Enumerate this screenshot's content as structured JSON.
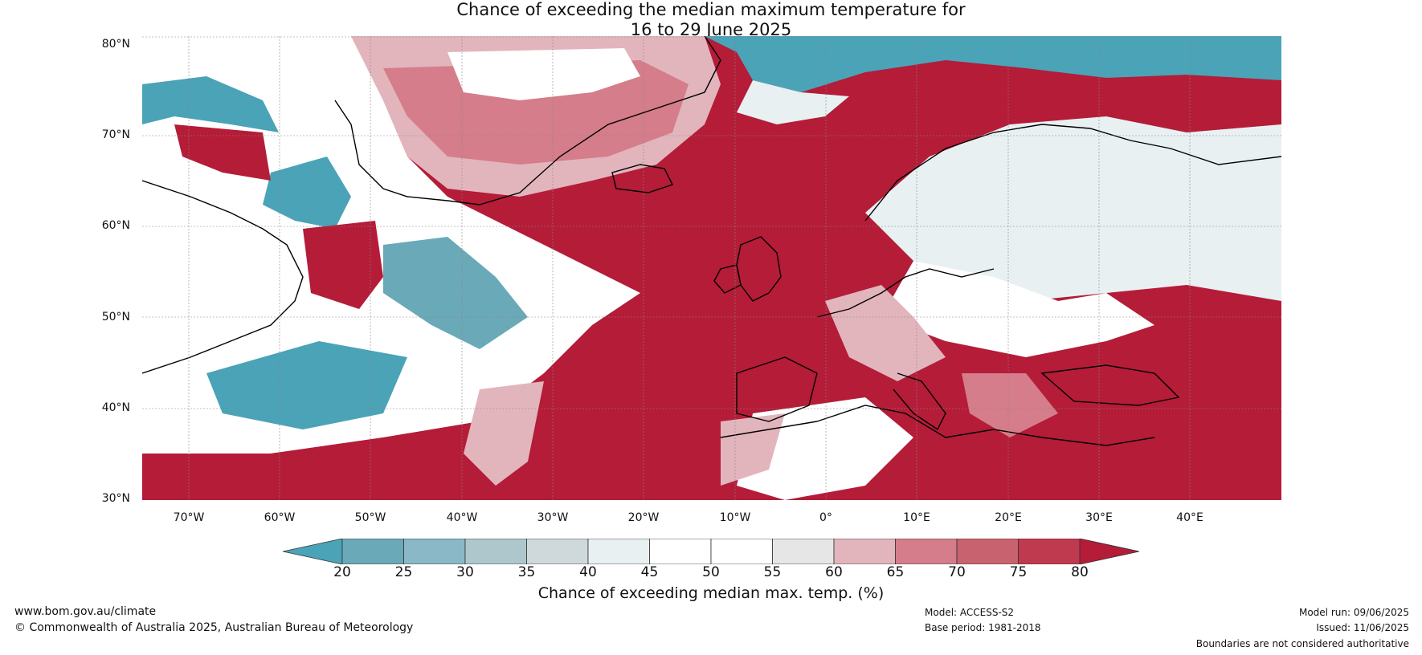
{
  "title": {
    "line1": "Chance of exceeding the median maximum temperature for",
    "line2": "16 to 29 June 2025"
  },
  "map": {
    "lat_labels": [
      "80°N",
      "70°N",
      "60°N",
      "50°N",
      "40°N",
      "30°N"
    ],
    "lon_labels": [
      "70°W",
      "60°W",
      "50°W",
      "40°W",
      "30°W",
      "20°W",
      "10°W",
      "0°",
      "10°E",
      "20°E",
      "30°E",
      "40°E"
    ],
    "ocean_color": "#b41c38",
    "coast_color": "#000000",
    "border_color": "#808080"
  },
  "colorbar": {
    "ticks": [
      "20",
      "25",
      "30",
      "35",
      "40",
      "45",
      "50",
      "55",
      "60",
      "65",
      "70",
      "75",
      "80"
    ],
    "colors": [
      "#4aa3b7",
      "#6aa9b8",
      "#8ab8c6",
      "#aec7cd",
      "#cfd9dc",
      "#e8f0f2",
      "#ffffff",
      "#ffffff",
      "#e6e6e6",
      "#e2b5bd",
      "#d57d8a",
      "#c9626f",
      "#c03a4f",
      "#b41c38"
    ],
    "label": "Chance of exceeding median max. temp. (%)"
  },
  "footer": {
    "website": "www.bom.gov.au/climate",
    "copyright": "© Commonwealth of Australia 2025, Australian Bureau of Meteorology",
    "model": "Model: ACCESS-S2",
    "base_period": "Base period: 1981-2018",
    "model_run": "Model run: 09/06/2025",
    "issued": "Issued: 11/06/2025",
    "disclaimer": "Boundaries are not considered authoritative"
  }
}
